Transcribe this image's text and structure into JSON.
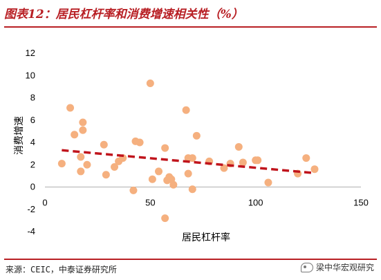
{
  "header": {
    "title": "图表12：居民杠杆率和消费增速相关性（%）"
  },
  "footer": {
    "source": "来源：CEIC，中泰证券研究所",
    "watermark": "梁中华宏观研究"
  },
  "colors": {
    "accent": "#b81f24",
    "points": "#f5b07f",
    "trend": "#c0141c"
  },
  "chart_data": {
    "type": "scatter",
    "title": "",
    "xlabel": "居民杠杆率",
    "ylabel": "消费增速",
    "xlim": [
      0,
      150
    ],
    "ylim": [
      -4,
      12
    ],
    "xticks": [
      0,
      50,
      100,
      150
    ],
    "yticks": [
      -4,
      -2,
      0,
      2,
      4,
      6,
      8,
      10,
      12
    ],
    "grid": false,
    "points": [
      {
        "x": 8,
        "y": 2.1
      },
      {
        "x": 12,
        "y": 7.1
      },
      {
        "x": 14,
        "y": 4.7
      },
      {
        "x": 17,
        "y": 1.4
      },
      {
        "x": 17,
        "y": 2.7
      },
      {
        "x": 18,
        "y": 5.8
      },
      {
        "x": 18,
        "y": 5.1
      },
      {
        "x": 20,
        "y": 2.0
      },
      {
        "x": 28,
        "y": 3.8
      },
      {
        "x": 29,
        "y": 1.1
      },
      {
        "x": 33,
        "y": 1.8
      },
      {
        "x": 35,
        "y": 2.3
      },
      {
        "x": 37,
        "y": 2.6
      },
      {
        "x": 42,
        "y": -0.3
      },
      {
        "x": 43,
        "y": 4.1
      },
      {
        "x": 45,
        "y": 4.0
      },
      {
        "x": 50,
        "y": 9.3
      },
      {
        "x": 51,
        "y": 0.7
      },
      {
        "x": 54,
        "y": 1.4
      },
      {
        "x": 57,
        "y": 3.5
      },
      {
        "x": 57,
        "y": -2.8
      },
      {
        "x": 58,
        "y": 0.6
      },
      {
        "x": 59,
        "y": 0.9
      },
      {
        "x": 60,
        "y": 0.7
      },
      {
        "x": 61,
        "y": 0.2
      },
      {
        "x": 67,
        "y": 6.9
      },
      {
        "x": 68,
        "y": 1.2
      },
      {
        "x": 68,
        "y": 2.6
      },
      {
        "x": 70,
        "y": 2.6
      },
      {
        "x": 70,
        "y": -0.2
      },
      {
        "x": 72,
        "y": 4.6
      },
      {
        "x": 78,
        "y": 2.3
      },
      {
        "x": 85,
        "y": 1.7
      },
      {
        "x": 88,
        "y": 2.1
      },
      {
        "x": 92,
        "y": 3.6
      },
      {
        "x": 94,
        "y": 2.2
      },
      {
        "x": 100,
        "y": 2.4
      },
      {
        "x": 101,
        "y": 2.4
      },
      {
        "x": 106,
        "y": 0.4
      },
      {
        "x": 120,
        "y": 1.2
      },
      {
        "x": 124,
        "y": 2.6
      },
      {
        "x": 128,
        "y": 1.6
      }
    ],
    "trendline": {
      "x": [
        8,
        128
      ],
      "y": [
        3.3,
        1.25
      ],
      "style": "dashed"
    }
  }
}
